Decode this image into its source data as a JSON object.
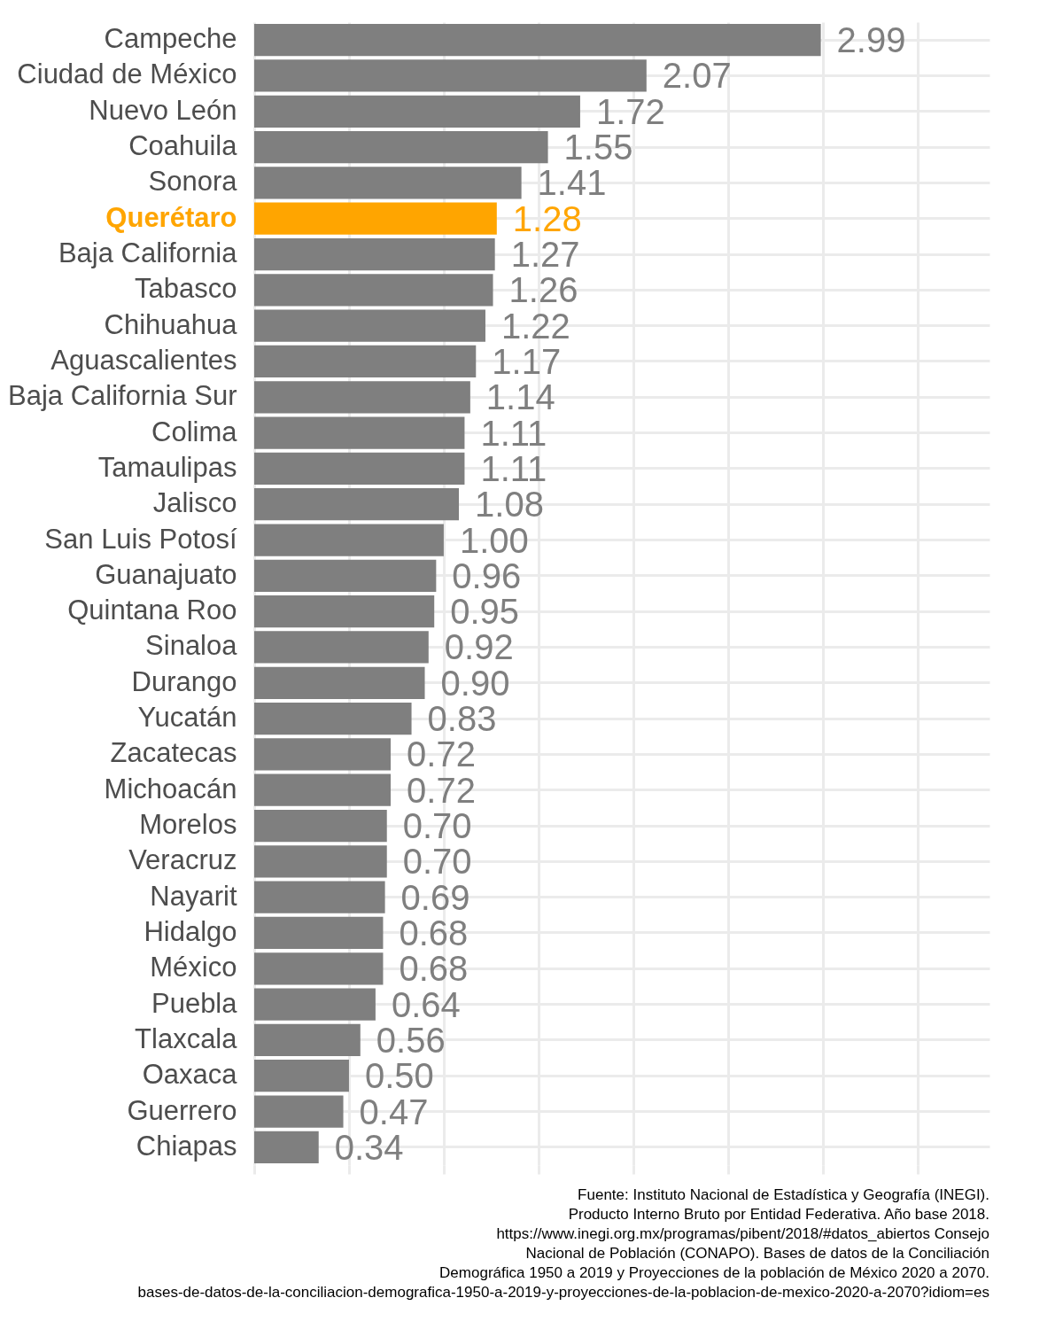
{
  "chart_data": {
    "type": "bar",
    "orientation": "horizontal",
    "categories": [
      "Campeche",
      "Ciudad de México",
      "Nuevo León",
      "Coahuila",
      "Sonora",
      "Querétaro",
      "Baja California",
      "Tabasco",
      "Chihuahua",
      "Aguascalientes",
      "Baja California Sur",
      "Colima",
      "Tamaulipas",
      "Jalisco",
      "San Luis Potosí",
      "Guanajuato",
      "Quintana Roo",
      "Sinaloa",
      "Durango",
      "Yucatán",
      "Zacatecas",
      "Michoacán",
      "Morelos",
      "Veracruz",
      "Nayarit",
      "Hidalgo",
      "México",
      "Puebla",
      "Tlaxcala",
      "Oaxaca",
      "Guerrero",
      "Chiapas"
    ],
    "values": [
      2.99,
      2.07,
      1.72,
      1.55,
      1.41,
      1.28,
      1.27,
      1.26,
      1.22,
      1.17,
      1.14,
      1.11,
      1.11,
      1.08,
      1.0,
      0.96,
      0.95,
      0.92,
      0.9,
      0.83,
      0.72,
      0.72,
      0.7,
      0.7,
      0.69,
      0.68,
      0.68,
      0.64,
      0.56,
      0.5,
      0.47,
      0.34
    ],
    "value_labels": [
      "2.99",
      "2.07",
      "1.72",
      "1.55",
      "1.41",
      "1.28",
      "1.27",
      "1.26",
      "1.22",
      "1.17",
      "1.14",
      "1.11",
      "1.11",
      "1.08",
      "1.00",
      "0.96",
      "0.95",
      "0.92",
      "0.90",
      "0.83",
      "0.72",
      "0.72",
      "0.70",
      "0.70",
      "0.69",
      "0.68",
      "0.68",
      "0.64",
      "0.56",
      "0.50",
      "0.47",
      "0.34"
    ],
    "colors": [
      "#7f7f7f",
      "#7f7f7f",
      "#7f7f7f",
      "#7f7f7f",
      "#7f7f7f",
      "#ffa500",
      "#7f7f7f",
      "#7f7f7f",
      "#7f7f7f",
      "#7f7f7f",
      "#7f7f7f",
      "#7f7f7f",
      "#7f7f7f",
      "#7f7f7f",
      "#7f7f7f",
      "#7f7f7f",
      "#7f7f7f",
      "#7f7f7f",
      "#7f7f7f",
      "#7f7f7f",
      "#7f7f7f",
      "#7f7f7f",
      "#7f7f7f",
      "#7f7f7f",
      "#7f7f7f",
      "#7f7f7f",
      "#7f7f7f",
      "#7f7f7f",
      "#7f7f7f",
      "#7f7f7f",
      "#7f7f7f",
      "#7f7f7f"
    ],
    "xlim": [
      0,
      3.88
    ],
    "xticks": [
      {
        "value": 0,
        "label": null
      },
      {
        "value": 0.5,
        "label": null
      },
      {
        "value": 1,
        "label": null
      },
      {
        "value": 1.5,
        "label": null
      },
      {
        "value": 2,
        "label": null
      },
      {
        "value": 2.5,
        "label": null
      },
      {
        "value": 3,
        "label": null
      },
      {
        "value": 3.5,
        "label": null
      }
    ],
    "grid": true,
    "tick_labels": "y",
    "annotations": [
      "Fuente: Instituto Nacional de Estadística y Geografía (INEGI).",
      "Producto Interno Bruto por Entidad Federativa. Año base 2018.",
      "https://www.inegi.org.mx/programas/pibent/2018/#datos_abiertos Consejo",
      "Nacional de Población (CONAPO). Bases de datos de la Conciliación",
      "Demográfica 1950 a 2019 y Proyecciones de la población de México 2020 a 2070.",
      "bases-de-datos-de-la-conciliacion-demografica-1950-a-2019-y-proyecciones-de-la-poblacion-de-mexico-2020-a-2070?idiom=es"
    ]
  }
}
